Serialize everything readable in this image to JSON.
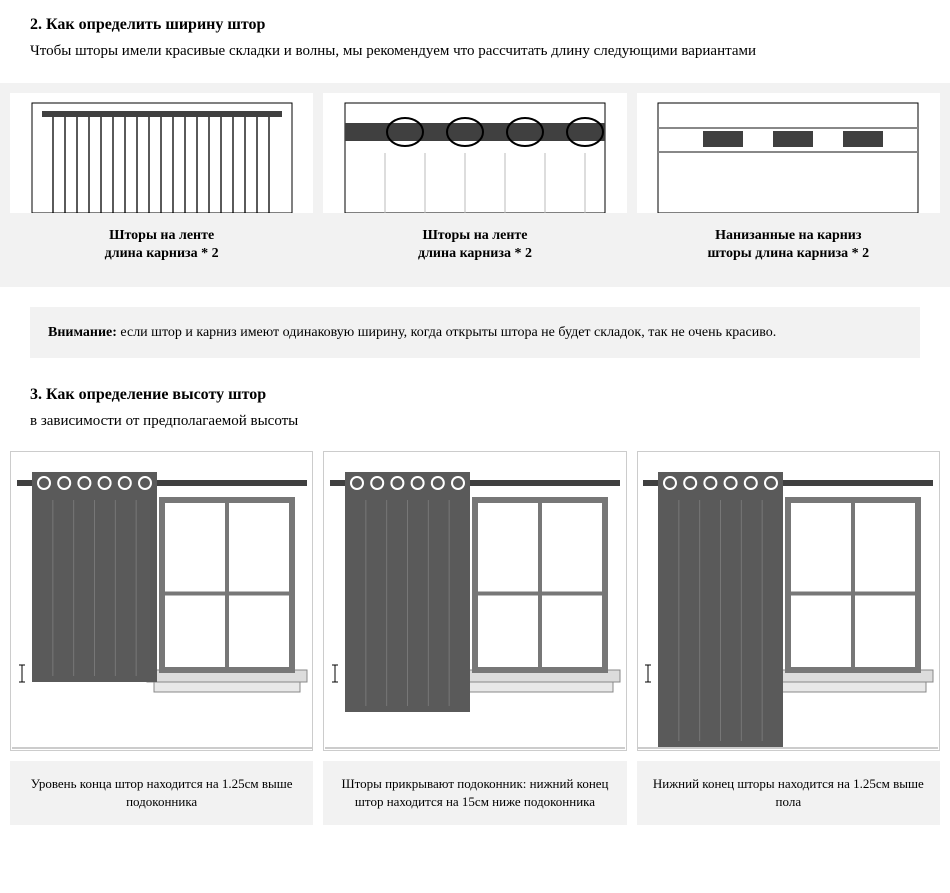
{
  "section2": {
    "title": "2. Как определить ширину штор",
    "description": "Чтобы шторы имели красивые складки и волны, мы рекомендуем что рассчитать длину следующими вариантами",
    "panels": [
      {
        "caption_l1": "Шторы на ленте",
        "caption_l2": "длина карниза * 2"
      },
      {
        "caption_l1": "Шторы на ленте",
        "caption_l2": "длина карниза * 2"
      },
      {
        "caption_l1": "Нанизанные на карниз",
        "caption_l2": "шторы длина карниза * 2"
      }
    ]
  },
  "notice": {
    "label": "Внимание:",
    "text": " если штор и карниз имеют одинаковую ширину, когда открыты штора не будет складок, так не очень красиво."
  },
  "section3": {
    "title": "3. Как определение высоту штор",
    "description": "в зависимости от предполагаемой высоты",
    "panels": [
      {
        "caption": "Уровень конца штор находится на 1.25см выше подоконника",
        "curtain_height": 210
      },
      {
        "caption": "Шторы прикрывают подоконник: нижний конец штор находится на 15см ниже подоконника",
        "curtain_height": 240
      },
      {
        "caption": "Нижний конец шторы находится на 1.25см выше пола",
        "curtain_height": 275
      }
    ]
  },
  "colors": {
    "curtain": "#5a5a5a",
    "rod": "#404040",
    "window_frame": "#888888",
    "sill": "#dcdcdc",
    "panel_bg": "#f2f2f2",
    "border": "#cccccc"
  }
}
